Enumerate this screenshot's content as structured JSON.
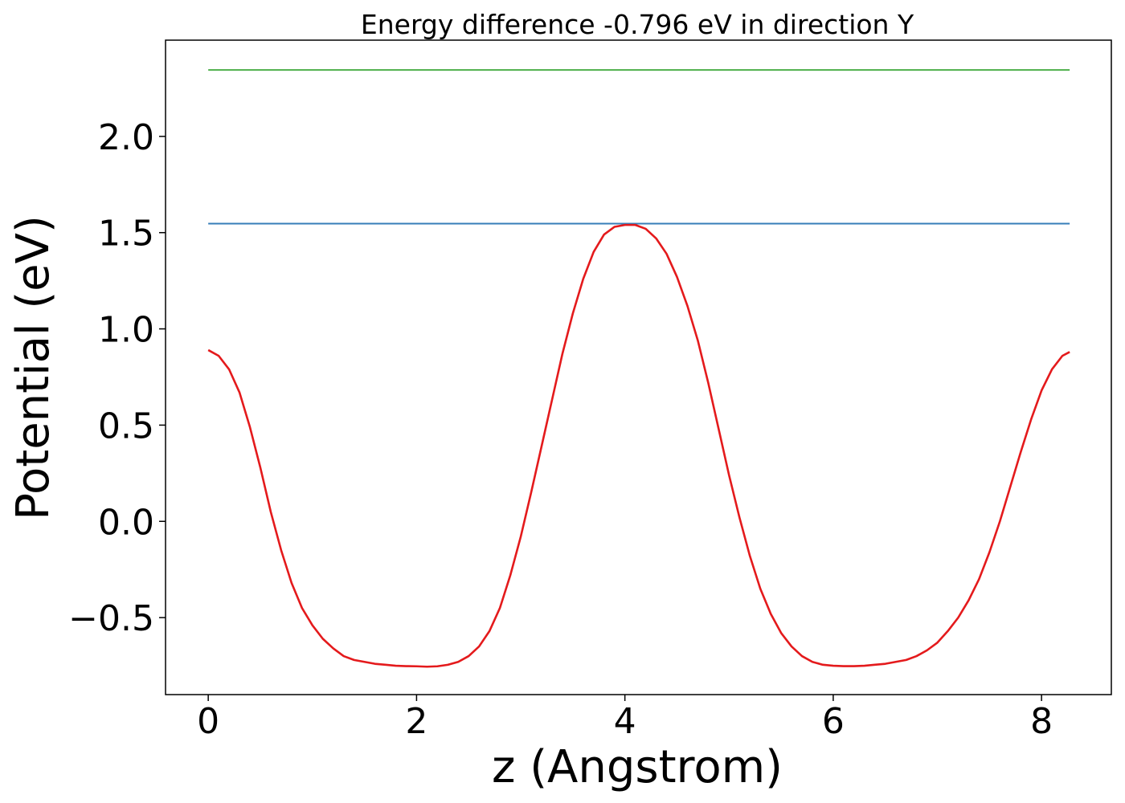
{
  "chart_data": {
    "type": "line",
    "title": "Energy difference -0.796 eV in direction Y",
    "xlabel": "z (Angstrom)",
    "ylabel": "Potential (eV)",
    "xlim": [
      -0.41,
      8.67
    ],
    "ylim": [
      -0.9,
      2.5
    ],
    "xticks": [
      0,
      2,
      4,
      6,
      8
    ],
    "xtick_labels": [
      "0",
      "2",
      "4",
      "6",
      "8"
    ],
    "yticks": [
      -0.5,
      0.0,
      0.5,
      1.0,
      1.5,
      2.0
    ],
    "ytick_labels": [
      "−0.5",
      "0.0",
      "0.5",
      "1.0",
      "1.5",
      "2.0"
    ],
    "grid": false,
    "colors": {
      "red": "#e41a1c",
      "blue": "#377eb8",
      "green": "#4daf4a"
    },
    "series": [
      {
        "color": "#4daf4a",
        "x": [
          0,
          8.27
        ],
        "y": [
          2.345,
          2.345
        ]
      },
      {
        "color": "#377eb8",
        "x": [
          0,
          8.27
        ],
        "y": [
          1.547,
          1.547
        ]
      },
      {
        "color": "#e41a1c",
        "x": [
          0.0,
          0.1,
          0.2,
          0.3,
          0.4,
          0.5,
          0.6,
          0.7,
          0.8,
          0.9,
          1.0,
          1.1,
          1.2,
          1.3,
          1.4,
          1.5,
          1.6,
          1.7,
          1.8,
          1.9,
          2.0,
          2.1,
          2.2,
          2.3,
          2.4,
          2.5,
          2.6,
          2.7,
          2.8,
          2.9,
          3.0,
          3.1,
          3.2,
          3.3,
          3.4,
          3.5,
          3.6,
          3.7,
          3.8,
          3.9,
          4.0,
          4.1,
          4.2,
          4.3,
          4.4,
          4.5,
          4.6,
          4.7,
          4.8,
          4.9,
          5.0,
          5.1,
          5.2,
          5.3,
          5.4,
          5.5,
          5.6,
          5.7,
          5.8,
          5.9,
          6.0,
          6.1,
          6.2,
          6.3,
          6.4,
          6.5,
          6.6,
          6.7,
          6.8,
          6.9,
          7.0,
          7.1,
          7.2,
          7.3,
          7.4,
          7.5,
          7.6,
          7.7,
          7.8,
          7.9,
          8.0,
          8.1,
          8.2,
          8.27
        ],
        "y": [
          0.89,
          0.86,
          0.79,
          0.67,
          0.49,
          0.28,
          0.05,
          -0.15,
          -0.32,
          -0.45,
          -0.54,
          -0.61,
          -0.66,
          -0.7,
          -0.72,
          -0.73,
          -0.74,
          -0.745,
          -0.75,
          -0.752,
          -0.753,
          -0.755,
          -0.753,
          -0.745,
          -0.73,
          -0.7,
          -0.65,
          -0.57,
          -0.45,
          -0.28,
          -0.08,
          0.15,
          0.39,
          0.63,
          0.87,
          1.08,
          1.26,
          1.4,
          1.49,
          1.53,
          1.54,
          1.54,
          1.52,
          1.47,
          1.39,
          1.27,
          1.12,
          0.94,
          0.72,
          0.48,
          0.24,
          0.02,
          -0.18,
          -0.35,
          -0.48,
          -0.58,
          -0.65,
          -0.7,
          -0.73,
          -0.745,
          -0.75,
          -0.752,
          -0.752,
          -0.75,
          -0.745,
          -0.74,
          -0.73,
          -0.72,
          -0.7,
          -0.67,
          -0.63,
          -0.57,
          -0.5,
          -0.41,
          -0.3,
          -0.16,
          0.0,
          0.18,
          0.36,
          0.53,
          0.68,
          0.79,
          0.86,
          0.88
        ]
      }
    ]
  }
}
